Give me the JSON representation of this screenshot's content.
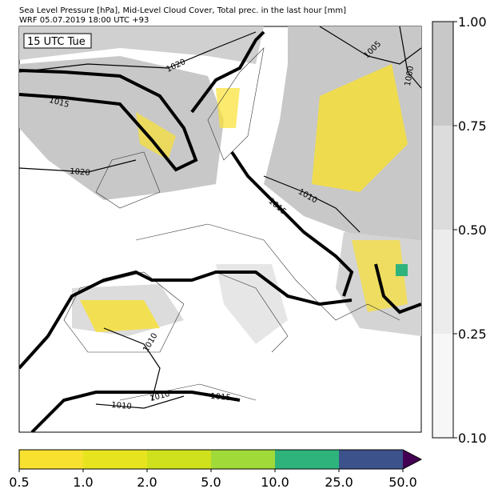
{
  "header": {
    "line1": "Sea Level Pressure [hPa], Mid-Level Cloud Cover, Total prec. in the last hour [mm]",
    "line2": "WRF 05.07.2019 18:00 UTC +93"
  },
  "map": {
    "time_label": "15 UTC Tue",
    "isobar_labels": [
      "1020",
      "1015",
      "1020",
      "1005",
      "1000",
      "1010",
      "1015",
      "1010",
      "1010",
      "1015",
      "1010"
    ]
  },
  "cloud_colorbar": {
    "labels": [
      "1.00",
      "0.75",
      "0.50",
      "0.25",
      "0.10"
    ]
  },
  "precip_colorbar": {
    "labels": [
      "0.5",
      "1.0",
      "2.0",
      "5.0",
      "10.0",
      "25.0",
      "50.0"
    ]
  }
}
